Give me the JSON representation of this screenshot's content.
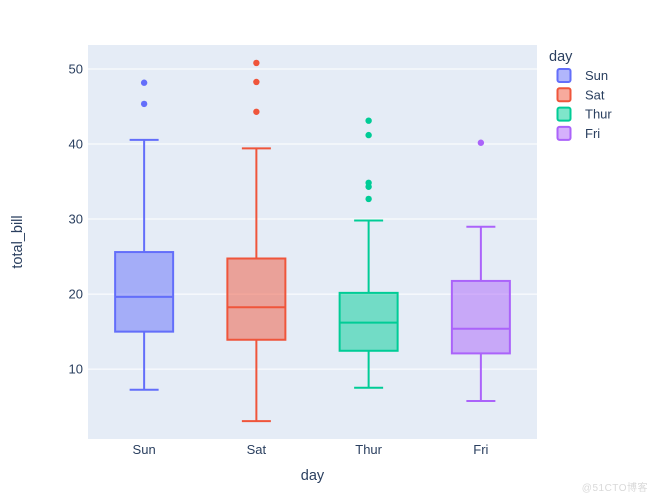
{
  "watermark": {
    "text": "@51CTO博客"
  },
  "chart_data": {
    "type": "box",
    "title": "",
    "xlabel": "day",
    "ylabel": "total_bill",
    "categories": [
      "Sun",
      "Sat",
      "Thur",
      "Fri"
    ],
    "ylim": [
      0.68,
      53.2
    ],
    "yticks": [
      10,
      20,
      30,
      40,
      50
    ],
    "grid": true,
    "legend": {
      "title": "day",
      "position": "right",
      "entries": [
        "Sun",
        "Sat",
        "Thur",
        "Fri"
      ]
    },
    "colors": {
      "plot_bg": "#e5ecf6",
      "grid": "#ffffff",
      "text": "#2a3f5f",
      "watermark": "#d9d9d9",
      "series": [
        "#636efa",
        "#ef553b",
        "#00cc96",
        "#ab63fa"
      ]
    },
    "series": [
      {
        "name": "Sun",
        "color": "#636efa",
        "lowerfence": 7.25,
        "q1": 14.99,
        "median": 19.63,
        "q3": 25.6,
        "upperfence": 40.55,
        "outliers": [
          45.35,
          48.17
        ]
      },
      {
        "name": "Sat",
        "color": "#ef553b",
        "lowerfence": 3.07,
        "q1": 13.91,
        "median": 18.24,
        "q3": 24.74,
        "upperfence": 39.42,
        "outliers": [
          44.3,
          48.27,
          50.81
        ]
      },
      {
        "name": "Thur",
        "color": "#00cc96",
        "lowerfence": 7.51,
        "q1": 12.44,
        "median": 16.2,
        "q3": 20.16,
        "upperfence": 29.8,
        "outliers": [
          32.68,
          34.3,
          34.83,
          41.19,
          43.11
        ]
      },
      {
        "name": "Fri",
        "color": "#ab63fa",
        "lowerfence": 5.75,
        "q1": 12.09,
        "median": 15.38,
        "q3": 21.75,
        "upperfence": 28.97,
        "outliers": [
          40.17
        ]
      }
    ]
  }
}
